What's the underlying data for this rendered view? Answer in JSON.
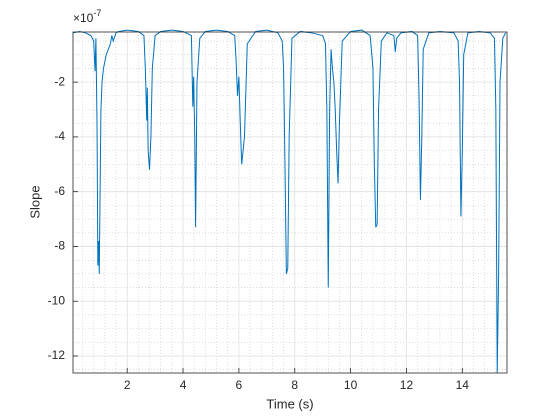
{
  "chart_data": {
    "type": "line",
    "xlabel": "Time (s)",
    "ylabel": "Slope",
    "exponent_base": "×10",
    "exponent_power": "-7",
    "xlim": [
      0.06,
      15.6
    ],
    "ylim": [
      -12.62,
      -0.17
    ],
    "xticks": [
      2,
      4,
      6,
      8,
      10,
      12,
      14
    ],
    "yticks": [
      -2,
      -4,
      -6,
      -8,
      -10,
      -12
    ],
    "xminorticks": [
      0.4,
      0.8,
      1.2,
      1.6,
      2.4,
      2.8,
      3.2,
      3.6,
      4.4,
      4.8,
      5.2,
      5.6,
      6.4,
      6.8,
      7.2,
      7.6,
      8.4,
      8.8,
      9.2,
      9.6,
      10.4,
      10.8,
      11.2,
      11.6,
      12.4,
      12.8,
      13.2,
      13.6,
      14.4,
      14.8,
      15.2
    ],
    "yminorticks": [
      -0.5,
      -1,
      -1.5,
      -2.5,
      -3,
      -3.5,
      -4.5,
      -5,
      -5.5,
      -6.5,
      -7,
      -7.5,
      -8.5,
      -9,
      -9.5,
      -10.5,
      -11,
      -11.5,
      -12.5
    ],
    "grid": true,
    "minor_grid": true,
    "x": [
      0.06,
      0.3,
      0.5,
      0.7,
      0.8,
      0.85,
      0.88,
      0.92,
      0.95,
      0.98,
      1.0,
      1.03,
      1.06,
      1.1,
      1.15,
      1.25,
      1.4,
      1.45,
      1.5,
      1.6,
      1.7,
      2.0,
      2.4,
      2.6,
      2.65,
      2.7,
      2.72,
      2.75,
      2.8,
      2.85,
      2.9,
      3.0,
      3.2,
      3.6,
      4.0,
      4.3,
      4.35,
      4.38,
      4.42,
      4.45,
      4.5,
      4.6,
      4.8,
      5.2,
      5.6,
      5.85,
      5.9,
      5.95,
      6.0,
      6.05,
      6.1,
      6.2,
      6.3,
      6.6,
      7.0,
      7.4,
      7.55,
      7.6,
      7.65,
      7.7,
      7.75,
      7.8,
      7.9,
      8.2,
      8.6,
      9.0,
      9.1,
      9.15,
      9.2,
      9.25,
      9.3,
      9.35,
      9.4,
      9.45,
      9.5,
      9.55,
      9.6,
      9.7,
      10.0,
      10.4,
      10.7,
      10.8,
      10.85,
      10.9,
      10.95,
      11.0,
      11.1,
      11.3,
      11.55,
      11.6,
      11.65,
      11.8,
      12.2,
      12.4,
      12.45,
      12.5,
      12.55,
      12.6,
      12.8,
      13.2,
      13.7,
      13.85,
      13.9,
      13.95,
      14.0,
      14.05,
      14.2,
      14.6,
      15.0,
      15.15,
      15.2,
      15.25,
      15.3,
      15.35,
      15.45,
      15.55
    ],
    "series": [
      {
        "color": "#0072bd",
        "values": [
          -0.2,
          -0.15,
          -0.2,
          -0.3,
          -0.5,
          -1.6,
          -0.4,
          -3.5,
          -8.7,
          -7.8,
          -9.0,
          -6.0,
          -3.0,
          -2.0,
          -1.5,
          -1.0,
          -0.6,
          -0.3,
          -0.5,
          -0.2,
          -0.15,
          -0.1,
          -0.15,
          -0.3,
          -1.5,
          -3.4,
          -2.2,
          -4.5,
          -5.2,
          -4.0,
          -1.5,
          -0.3,
          -0.15,
          -0.1,
          -0.15,
          -0.3,
          -2.9,
          -1.8,
          -4.0,
          -7.3,
          -2.0,
          -0.4,
          -0.15,
          -0.1,
          -0.15,
          -0.3,
          -1.2,
          -2.5,
          -1.8,
          -3.5,
          -5.0,
          -4.0,
          -0.6,
          -0.15,
          -0.1,
          -0.2,
          -0.5,
          -1.5,
          -5.0,
          -9.0,
          -8.8,
          -4.0,
          -0.4,
          -0.15,
          -0.2,
          -0.3,
          -0.6,
          -3.0,
          -9.5,
          -3.0,
          -0.8,
          -1.5,
          -2.0,
          -3.0,
          -4.5,
          -5.7,
          -3.5,
          -0.5,
          -0.15,
          -0.1,
          -0.3,
          -1.5,
          -5.0,
          -7.3,
          -7.2,
          -3.0,
          -0.5,
          -0.2,
          -0.3,
          -0.9,
          -0.4,
          -0.2,
          -0.15,
          -0.3,
          -2.5,
          -6.3,
          -4.0,
          -0.8,
          -0.2,
          -0.15,
          -0.2,
          -0.5,
          -2.0,
          -6.9,
          -4.5,
          -1.0,
          -0.2,
          -0.15,
          -0.2,
          -0.4,
          -3.0,
          -12.6,
          -9.0,
          -2.0,
          -0.4,
          -0.2
        ]
      }
    ]
  }
}
